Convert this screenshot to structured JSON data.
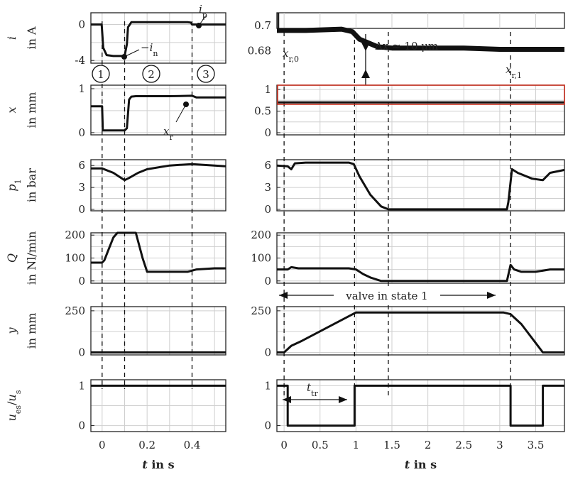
{
  "chart_data": [
    {
      "id": "i_left",
      "type": "line",
      "xlim": [
        -0.05,
        0.55
      ],
      "ylim": [
        -4.3,
        1.3
      ],
      "yticks": [
        "0",
        "-4"
      ],
      "ylabel": "i",
      "yunit": "in A",
      "series": [
        {
          "x": [
            -0.05,
            -0.002,
            0.005,
            0.02,
            0.05,
            0.09,
            0.1,
            0.11,
            0.115,
            0.13,
            0.16,
            0.25,
            0.38,
            0.395,
            0.4,
            0.55
          ],
          "y": [
            0,
            0,
            -2.6,
            -3.4,
            -3.5,
            -3.5,
            -3.5,
            -2.2,
            -0.3,
            0.25,
            0.25,
            0.25,
            0.25,
            0.2,
            0,
            0
          ]
        }
      ],
      "annotations": {
        "i_p": "i",
        "i_p_sub": "p",
        "i_n": "−i",
        "i_n_sub": "n",
        "phases": [
          "1",
          "2",
          "3"
        ]
      }
    },
    {
      "id": "i_zoom",
      "type": "line",
      "xlim": [
        -0.1,
        3.9
      ],
      "ylim": [
        0.67,
        0.71
      ],
      "yticks": [
        "0.7",
        "0.68"
      ],
      "series": [
        {
          "x": [
            -0.1,
            0.3,
            0.8,
            0.95,
            1.05,
            1.3,
            1.5,
            2,
            2.5,
            3,
            3.5,
            3.9
          ],
          "y": [
            0.696,
            0.696,
            0.697,
            0.695,
            0.689,
            0.683,
            0.682,
            0.682,
            0.682,
            0.681,
            0.681,
            0.681
          ]
        }
      ],
      "annotations": {
        "x_r0": "x",
        "x_r0_sub": "r,0",
        "x_r1": "x",
        "x_r1_sub": "r,1",
        "delta": "Δx ≈ 10 μm"
      }
    },
    {
      "id": "x_left",
      "type": "line",
      "xlim": [
        -0.05,
        0.55
      ],
      "ylim": [
        -0.05,
        1.08
      ],
      "yticks": [
        "1",
        "0"
      ],
      "ylabel": "x",
      "yunit": "in mm",
      "series": [
        {
          "x": [
            -0.05,
            0,
            0.003,
            0.1,
            0.11,
            0.12,
            0.13,
            0.15,
            0.3,
            0.4,
            0.42,
            0.55
          ],
          "y": [
            0.6,
            0.6,
            0.05,
            0.05,
            0.1,
            0.75,
            0.82,
            0.83,
            0.83,
            0.84,
            0.8,
            0.8
          ]
        }
      ],
      "annotations": {
        "x_r": "x",
        "x_r_sub": "r"
      }
    },
    {
      "id": "x_right",
      "type": "line",
      "xlim": [
        -0.1,
        3.9
      ],
      "ylim": [
        -0.05,
        1.1
      ],
      "yticks": [
        "1",
        "0.5",
        "0"
      ],
      "series": [
        {
          "x": [
            -0.1,
            3.9
          ],
          "y": [
            0.7,
            0.7
          ]
        }
      ]
    },
    {
      "id": "p_left",
      "type": "line",
      "xlim": [
        -0.05,
        0.55
      ],
      "ylim": [
        -0.2,
        6.8
      ],
      "yticks": [
        "6",
        "3",
        "0"
      ],
      "ylabel": "p",
      "ylabel_sub": "1",
      "yunit": "in bar",
      "series": [
        {
          "x": [
            -0.05,
            0,
            0.05,
            0.08,
            0.1,
            0.12,
            0.16,
            0.2,
            0.3,
            0.4,
            0.5,
            0.55
          ],
          "y": [
            5.6,
            5.6,
            5.0,
            4.4,
            4.0,
            4.3,
            5.0,
            5.5,
            6.0,
            6.2,
            6.0,
            5.9
          ]
        }
      ]
    },
    {
      "id": "p_right",
      "type": "line",
      "xlim": [
        -0.1,
        3.9
      ],
      "ylim": [
        -0.2,
        6.8
      ],
      "yticks": [
        "6",
        "3",
        "0"
      ],
      "series": [
        {
          "x": [
            -0.1,
            0.05,
            0.1,
            0.15,
            0.3,
            0.6,
            0.9,
            0.97,
            1.05,
            1.2,
            1.35,
            1.45,
            3.1,
            3.12,
            3.17,
            3.25,
            3.45,
            3.6,
            3.7,
            3.9
          ],
          "y": [
            6.0,
            5.9,
            5.5,
            6.3,
            6.4,
            6.4,
            6.4,
            6.2,
            4.5,
            2.0,
            0.4,
            0,
            0,
            1.0,
            5.5,
            5.0,
            4.2,
            4.0,
            5.0,
            5.4
          ]
        }
      ]
    },
    {
      "id": "q_left",
      "type": "line",
      "xlim": [
        -0.05,
        0.55
      ],
      "ylim": [
        -10,
        210
      ],
      "yticks": [
        "200",
        "100",
        "0"
      ],
      "ylabel": "Q",
      "yunit": "in Nl/min",
      "series": [
        {
          "x": [
            -0.05,
            0,
            0.01,
            0.03,
            0.05,
            0.068,
            0.08,
            0.1,
            0.15,
            0.18,
            0.2,
            0.3,
            0.38,
            0.42,
            0.5,
            0.55
          ],
          "y": [
            80,
            80,
            90,
            140,
            190,
            210,
            210,
            210,
            210,
            100,
            40,
            40,
            40,
            50,
            55,
            55
          ]
        }
      ]
    },
    {
      "id": "q_right",
      "type": "line",
      "xlim": [
        -0.1,
        3.9
      ],
      "ylim": [
        -10,
        210
      ],
      "yticks": [
        "200",
        "100",
        "0"
      ],
      "series": [
        {
          "x": [
            -0.1,
            0.05,
            0.1,
            0.2,
            0.6,
            0.9,
            1.0,
            1.1,
            1.2,
            1.35,
            3.1,
            3.15,
            3.2,
            3.3,
            3.5,
            3.7,
            3.9
          ],
          "y": [
            50,
            50,
            60,
            55,
            55,
            55,
            50,
            30,
            15,
            0,
            0,
            70,
            50,
            40,
            40,
            50,
            50
          ]
        }
      ],
      "annotations": {
        "state": "valve in state 1"
      }
    },
    {
      "id": "y_left",
      "type": "line",
      "xlim": [
        -0.05,
        0.55
      ],
      "ylim": [
        -15,
        275
      ],
      "yticks": [
        "250",
        "0"
      ],
      "ylabel": "y",
      "yunit": "in mm",
      "series": [
        {
          "x": [
            -0.05,
            0.55
          ],
          "y": [
            0,
            0
          ]
        }
      ]
    },
    {
      "id": "y_right",
      "type": "line",
      "xlim": [
        -0.1,
        3.9
      ],
      "ylim": [
        -15,
        275
      ],
      "yticks": [
        "250",
        "0"
      ],
      "series": [
        {
          "x": [
            -0.1,
            0,
            0.1,
            0.25,
            1.0,
            3.05,
            3.15,
            3.3,
            3.6,
            3.9
          ],
          "y": [
            0,
            0,
            40,
            70,
            240,
            240,
            230,
            170,
            0,
            0
          ]
        }
      ]
    },
    {
      "id": "u_left",
      "type": "line",
      "xlim": [
        -0.05,
        0.55
      ],
      "ylim": [
        -0.15,
        1.15
      ],
      "xticks": [
        "0",
        "0.2",
        "0.4"
      ],
      "xlabel": "t",
      "xunit": "in s",
      "yticks": [
        "1",
        "0"
      ],
      "ylabel": "u",
      "ylabel_sub": "es",
      "ylabel_den": "u",
      "ylabel_den_sub": "s",
      "series": [
        {
          "x": [
            -0.05,
            0.55
          ],
          "y": [
            1,
            1
          ]
        }
      ]
    },
    {
      "id": "u_right",
      "type": "line",
      "xlim": [
        -0.1,
        3.9
      ],
      "ylim": [
        -0.15,
        1.15
      ],
      "xticks": [
        "0",
        "0.5",
        "1",
        "1.5",
        "2",
        "2.5",
        "3",
        "3.5"
      ],
      "xlabel": "t",
      "xunit": "in s",
      "yticks": [
        "1",
        "0"
      ],
      "series": [
        {
          "x": [
            -0.1,
            0.05,
            0.05,
            0.98,
            0.98,
            3.15,
            3.15,
            3.6,
            3.6,
            3.9
          ],
          "y": [
            1,
            1,
            0,
            0,
            1,
            1,
            0,
            0,
            1,
            1
          ]
        }
      ],
      "annotations": {
        "t_tr": "t",
        "t_tr_sub": "tr"
      }
    }
  ]
}
